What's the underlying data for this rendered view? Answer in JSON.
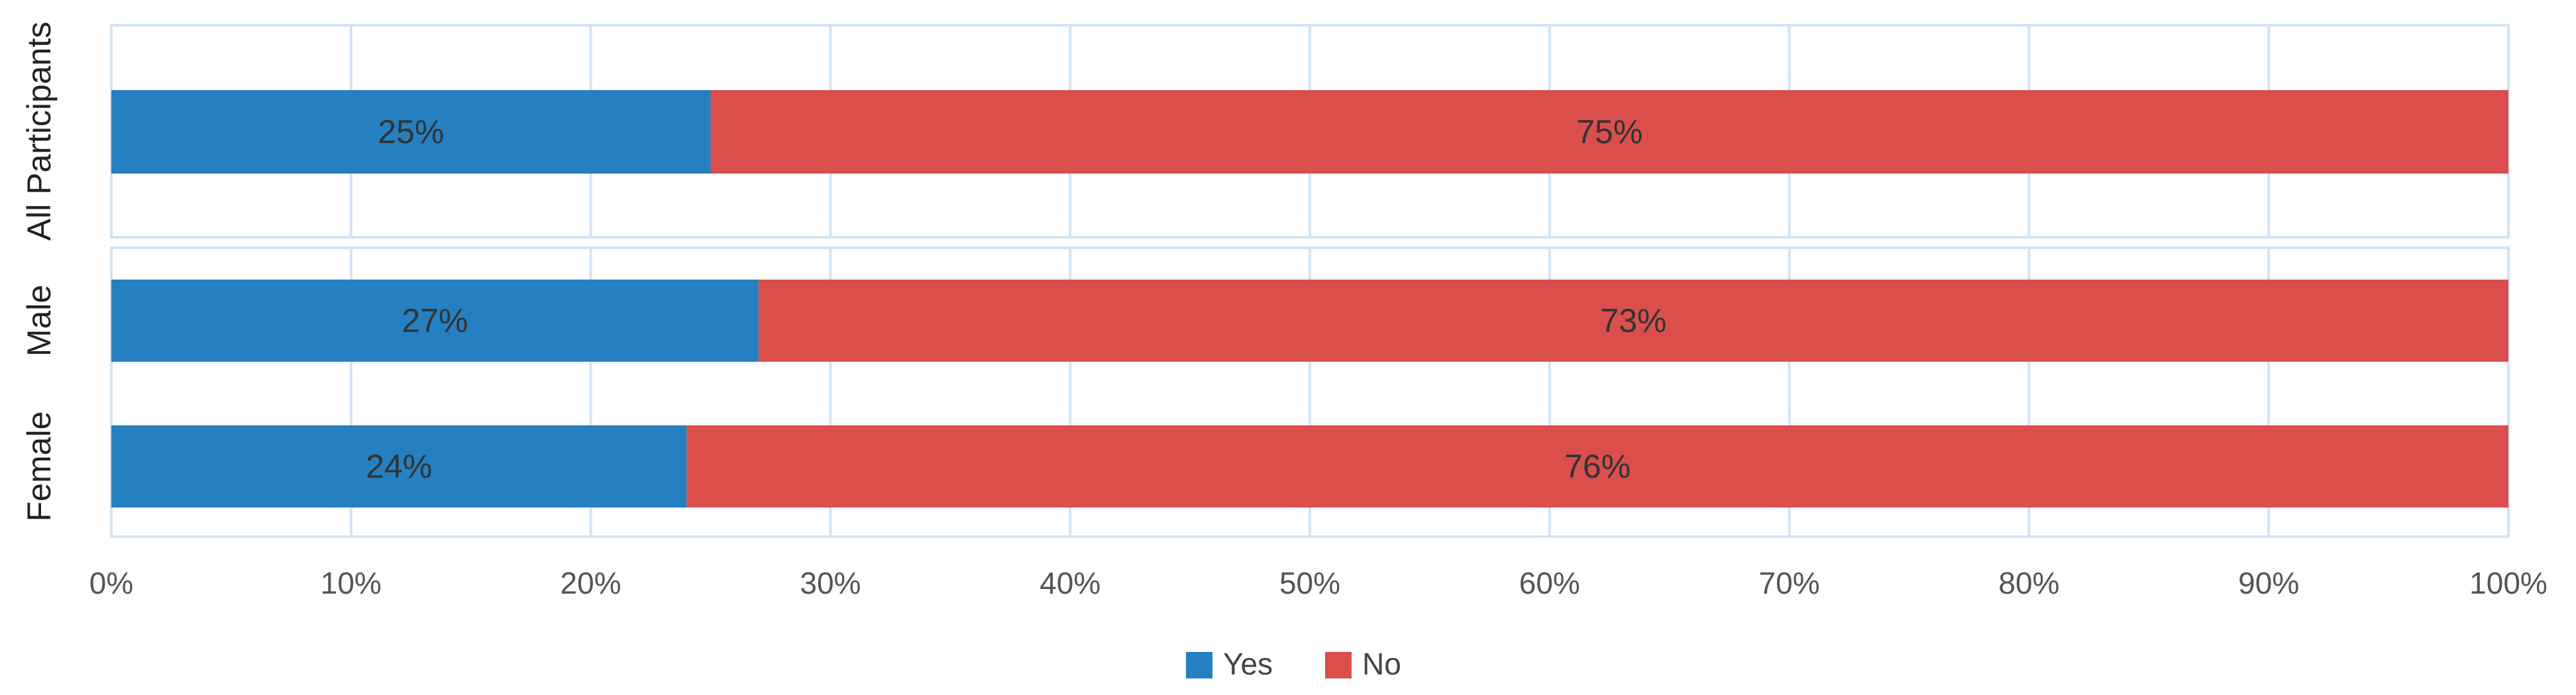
{
  "chart_data": {
    "type": "bar",
    "orientation": "horizontal",
    "stacked": "100%",
    "categories": [
      "All Participants",
      "Male",
      "Female"
    ],
    "panels": [
      [
        "All Participants"
      ],
      [
        "Male",
        "Female"
      ]
    ],
    "series": [
      {
        "name": "Yes",
        "color": "#2580C1",
        "values": [
          25,
          27,
          24
        ],
        "labels": [
          "25%",
          "27%",
          "24%"
        ]
      },
      {
        "name": "No",
        "color": "#DA4F4C",
        "values": [
          75,
          73,
          76
        ],
        "labels": [
          "75%",
          "73%",
          "76%"
        ]
      }
    ],
    "xlim": [
      0,
      100
    ],
    "xticks": [
      "0%",
      "10%",
      "20%",
      "30%",
      "40%",
      "50%",
      "60%",
      "70%",
      "80%",
      "90%",
      "100%"
    ],
    "grid": true,
    "grid_color": "#D2E4F4",
    "legend_position": "bottom-center"
  }
}
